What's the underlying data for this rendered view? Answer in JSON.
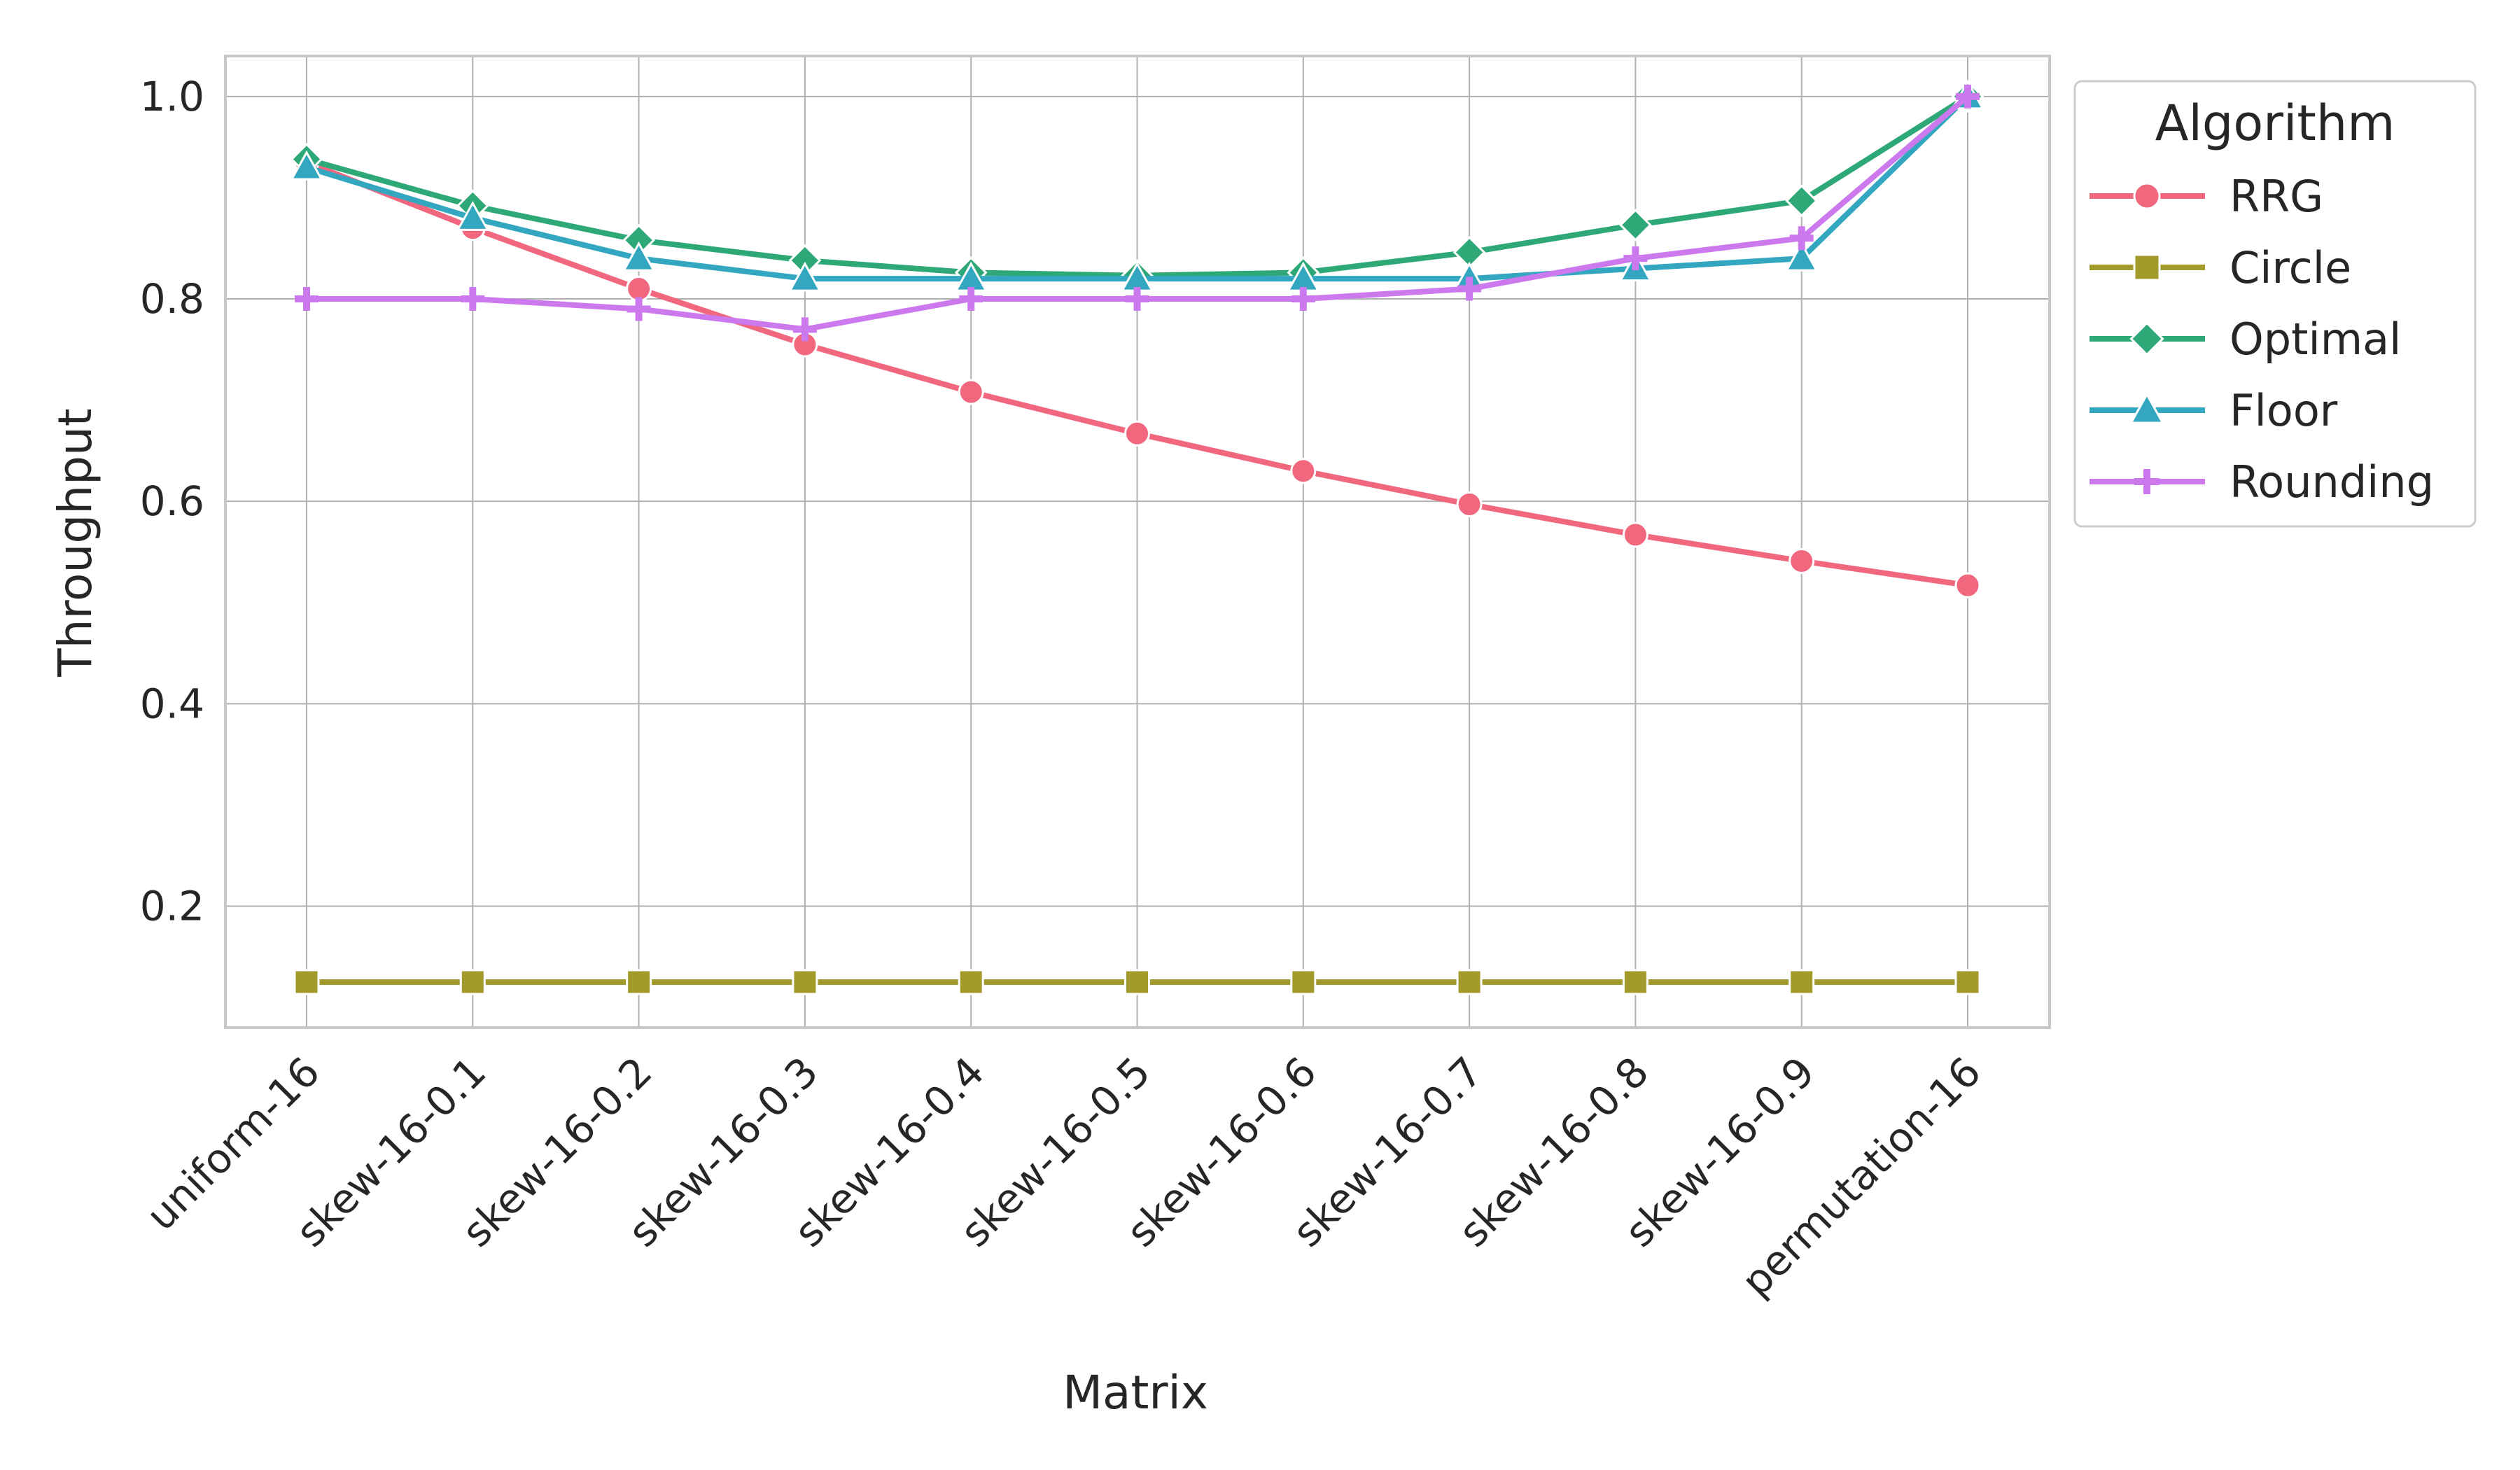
{
  "chart_data": {
    "type": "line",
    "xlabel": "Matrix",
    "ylabel": "Throughput",
    "categories": [
      "uniform-16",
      "skew-16-0.1",
      "skew-16-0.2",
      "skew-16-0.3",
      "skew-16-0.4",
      "skew-16-0.5",
      "skew-16-0.6",
      "skew-16-0.7",
      "skew-16-0.8",
      "skew-16-0.9",
      "permutation-16"
    ],
    "ylim": [
      0.08,
      1.04
    ],
    "yticks": [
      "0.2",
      "0.4",
      "0.6",
      "0.8",
      "1.0"
    ],
    "grid": true,
    "legend": {
      "title": "Algorithm",
      "placement": "outside-right-top"
    },
    "series": [
      {
        "name": "RRG",
        "marker": "circle",
        "color": "#f0677e",
        "values": [
          0.935,
          0.87,
          0.81,
          0.755,
          0.708,
          0.667,
          0.63,
          0.597,
          0.567,
          0.541,
          0.517
        ]
      },
      {
        "name": "Circle",
        "marker": "square",
        "color": "#a39a2c",
        "values": [
          0.125,
          0.125,
          0.125,
          0.125,
          0.125,
          0.125,
          0.125,
          0.125,
          0.125,
          0.125,
          0.125
        ]
      },
      {
        "name": "Optimal",
        "marker": "diamond",
        "color": "#2ea876",
        "values": [
          0.938,
          0.892,
          0.858,
          0.838,
          0.826,
          0.823,
          0.826,
          0.846,
          0.873,
          0.897,
          1.0
        ]
      },
      {
        "name": "Floor",
        "marker": "triangle",
        "color": "#33a6c0",
        "values": [
          0.93,
          0.88,
          0.84,
          0.82,
          0.82,
          0.82,
          0.82,
          0.82,
          0.83,
          0.84,
          1.0
        ]
      },
      {
        "name": "Rounding",
        "marker": "plus",
        "color": "#cc79ee",
        "values": [
          0.8,
          0.8,
          0.79,
          0.77,
          0.8,
          0.8,
          0.8,
          0.81,
          0.84,
          0.86,
          1.0
        ]
      }
    ]
  }
}
